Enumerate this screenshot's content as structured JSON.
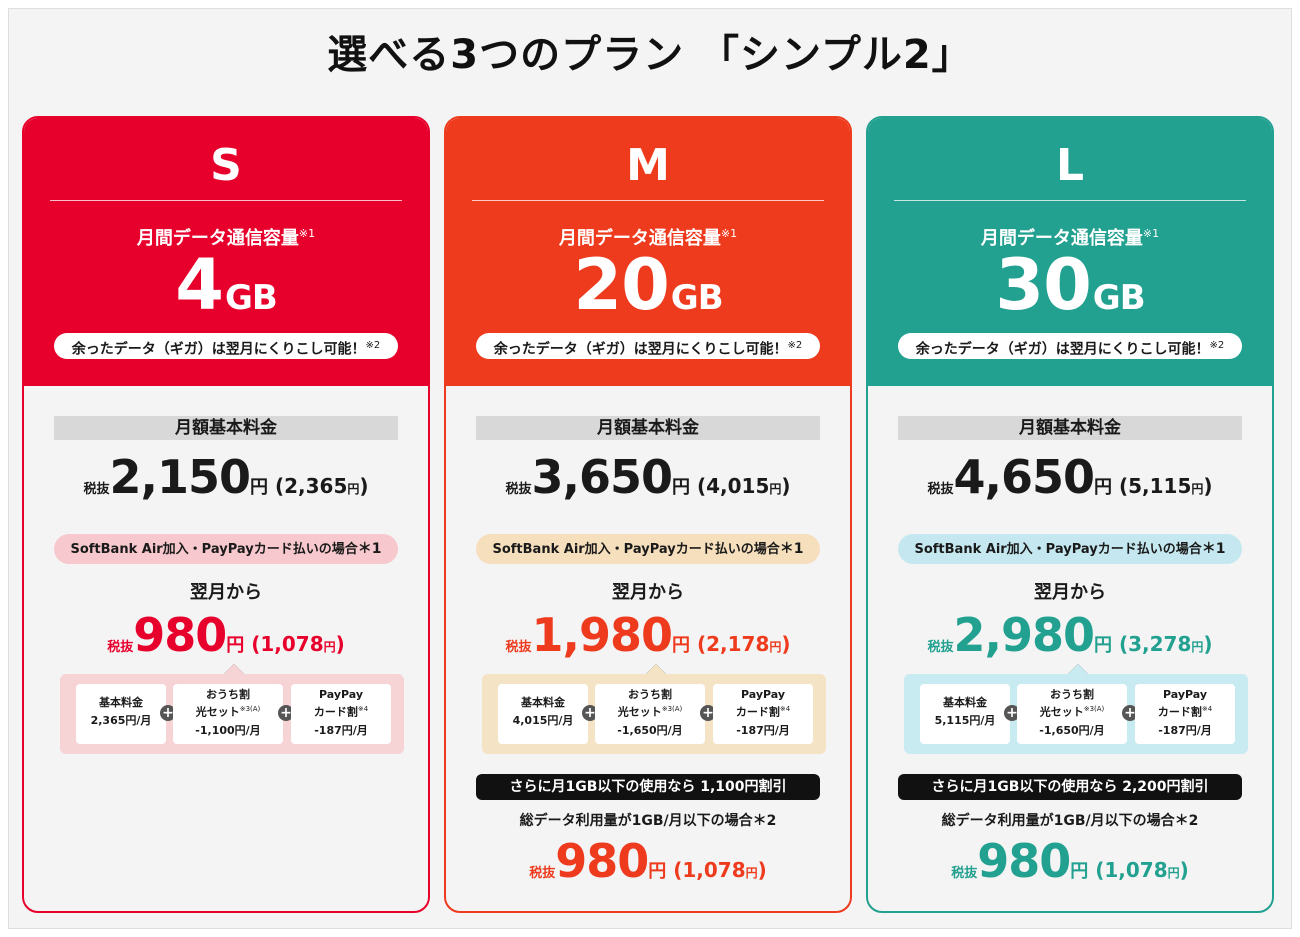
{
  "title": "選べる3つのプラン 「シンプル2」",
  "common": {
    "capacity_label": "月間データ通信容量",
    "capacity_note": "※1",
    "gb_unit": "GB",
    "rollover_text": "余ったデータ（ギガ）は翌月にくりこし可能！",
    "rollover_note": "※2",
    "base_fee_label": "月額基本料金",
    "tax_label": "税抜",
    "yen": "円",
    "condition_text": "SoftBank Air加入・PayPayカード払いの場合",
    "condition_mark": "＊1",
    "from_next_month": "翌月から",
    "bd_base_label": "基本料金",
    "bd_home_line1": "おうち割",
    "bd_home_line2": "光セット",
    "bd_home_note": "※3(A)",
    "bd_paypay_line1": "PayPay",
    "bd_paypay_line2": "カード割",
    "bd_paypay_note": "※4",
    "bd_home_value": "-1,100円/月",
    "bd_paypay_value": "-187円/月",
    "total_usage_text": "総データ利用量が1GB/月以下の場合",
    "total_usage_mark": "＊2"
  },
  "plans": [
    {
      "name": "S",
      "color": "#e8002d",
      "cond_bg": "#f7c8cd",
      "bd_bg": "#f6d3d5",
      "gb": "4",
      "base_price": "2,150",
      "base_price_incl": "2,365",
      "disc_price": "980",
      "disc_price_incl": "1,078",
      "bd_base_value": "2,365円/月",
      "bd_home_value": "-1,100円/月",
      "promo_text": "",
      "final_price": "",
      "final_price_incl": ""
    },
    {
      "name": "M",
      "color": "#ee3b1e",
      "cond_bg": "#f6dfbd",
      "bd_bg": "#f4e3c4",
      "gb": "20",
      "base_price": "3,650",
      "base_price_incl": "4,015",
      "disc_price": "1,980",
      "disc_price_incl": "2,178",
      "bd_base_value": "4,015円/月",
      "bd_home_value": "-1,650円/月",
      "promo_text": "さらに月1GB以下の使用なら 1,100円割引",
      "final_price": "980",
      "final_price_incl": "1,078"
    },
    {
      "name": "L",
      "color": "#22a090",
      "cond_bg": "#c5e8f0",
      "bd_bg": "#c8eaf1",
      "gb": "30",
      "base_price": "4,650",
      "base_price_incl": "5,115",
      "disc_price": "2,980",
      "disc_price_incl": "3,278",
      "bd_base_value": "5,115円/月",
      "bd_home_value": "-1,650円/月",
      "promo_text": "さらに月1GB以下の使用なら 2,200円割引",
      "final_price": "980",
      "final_price_incl": "1,078"
    }
  ]
}
